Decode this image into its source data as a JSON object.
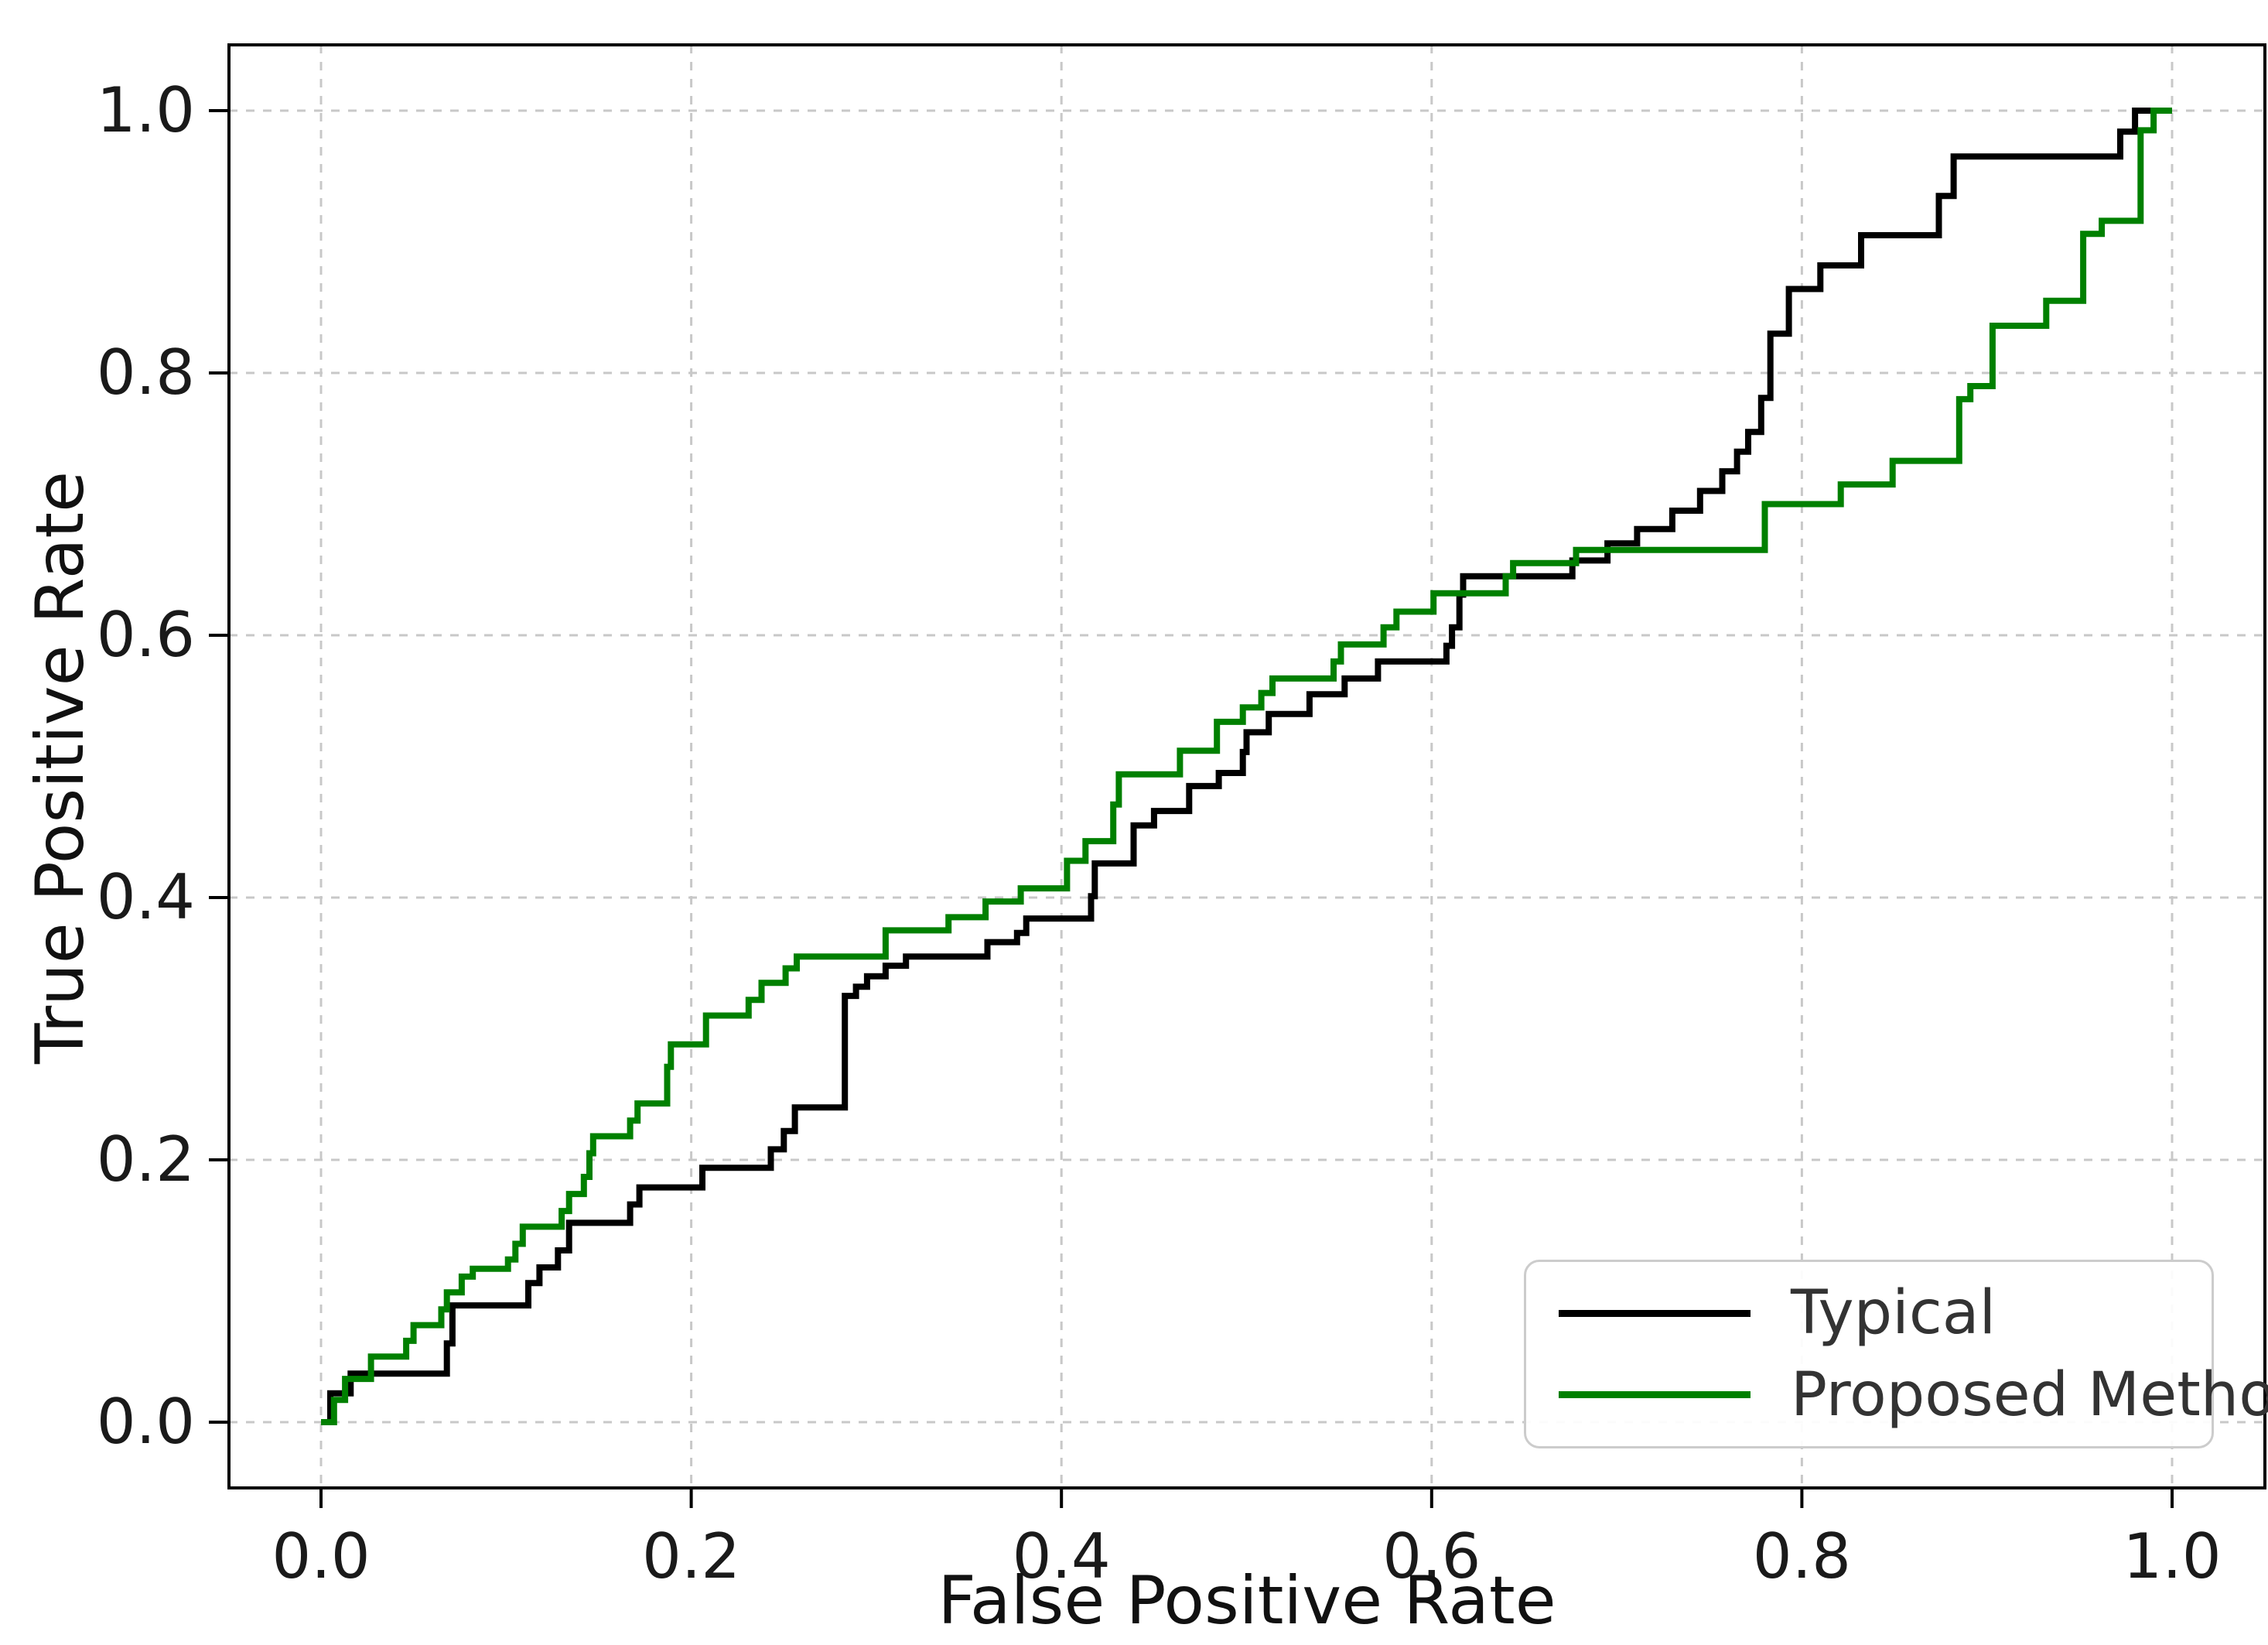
{
  "labels": {
    "xlabel": "False Positive Rate",
    "ylabel": "True Positive Rate"
  },
  "legend": {
    "position": "lower right",
    "items": [
      {
        "label": "Typical",
        "color": "#000000"
      },
      {
        "label": "Proposed Method",
        "color": "#008000"
      }
    ]
  },
  "chart_data": {
    "type": "line",
    "subtype": "roc-step-curves",
    "title": "",
    "xlabel": "False Positive Rate",
    "ylabel": "True Positive Rate",
    "xlim": [
      -0.05,
      1.05
    ],
    "ylim": [
      -0.05,
      1.05
    ],
    "grid": {
      "on": true,
      "style": "dashed",
      "color": "#c8c8c8"
    },
    "x_tick_labels": [
      "0.0",
      "0.2",
      "0.4",
      "0.6",
      "0.8",
      "1.0"
    ],
    "y_tick_labels": [
      "0.0",
      "0.2",
      "0.4",
      "0.6",
      "0.8",
      "1.0"
    ],
    "axis_color": "#000000",
    "tick_label_color": "#1a1a1a",
    "line_width": 8,
    "series": [
      {
        "name": "Typical",
        "color": "#000000",
        "step_points_fpr_tpr": [
          [
            0.0,
            0.0
          ],
          [
            0.005,
            0.022
          ],
          [
            0.016,
            0.037
          ],
          [
            0.068,
            0.06
          ],
          [
            0.071,
            0.089
          ],
          [
            0.112,
            0.106
          ],
          [
            0.118,
            0.118
          ],
          [
            0.128,
            0.131
          ],
          [
            0.134,
            0.152
          ],
          [
            0.167,
            0.166
          ],
          [
            0.172,
            0.179
          ],
          [
            0.206,
            0.194
          ],
          [
            0.243,
            0.208
          ],
          [
            0.25,
            0.222
          ],
          [
            0.256,
            0.24
          ],
          [
            0.283,
            0.325
          ],
          [
            0.289,
            0.332
          ],
          [
            0.295,
            0.34
          ],
          [
            0.305,
            0.348
          ],
          [
            0.316,
            0.355
          ],
          [
            0.36,
            0.366
          ],
          [
            0.376,
            0.373
          ],
          [
            0.381,
            0.384
          ],
          [
            0.416,
            0.401
          ],
          [
            0.418,
            0.426
          ],
          [
            0.439,
            0.455
          ],
          [
            0.45,
            0.466
          ],
          [
            0.469,
            0.485
          ],
          [
            0.485,
            0.495
          ],
          [
            0.498,
            0.511
          ],
          [
            0.5,
            0.526
          ],
          [
            0.512,
            0.54
          ],
          [
            0.534,
            0.555
          ],
          [
            0.553,
            0.567
          ],
          [
            0.571,
            0.58
          ],
          [
            0.608,
            0.592
          ],
          [
            0.611,
            0.606
          ],
          [
            0.615,
            0.631
          ],
          [
            0.617,
            0.645
          ],
          [
            0.676,
            0.657
          ],
          [
            0.695,
            0.67
          ],
          [
            0.711,
            0.681
          ],
          [
            0.73,
            0.695
          ],
          [
            0.745,
            0.71
          ],
          [
            0.757,
            0.725
          ],
          [
            0.765,
            0.74
          ],
          [
            0.771,
            0.755
          ],
          [
            0.778,
            0.781
          ],
          [
            0.783,
            0.83
          ],
          [
            0.793,
            0.864
          ],
          [
            0.81,
            0.882
          ],
          [
            0.832,
            0.905
          ],
          [
            0.874,
            0.935
          ],
          [
            0.882,
            0.965
          ],
          [
            0.972,
            0.984
          ],
          [
            0.98,
            1.0
          ],
          [
            1.0,
            1.0
          ]
        ]
      },
      {
        "name": "Proposed Method",
        "color": "#008000",
        "step_points_fpr_tpr": [
          [
            0.0,
            0.0
          ],
          [
            0.007,
            0.017
          ],
          [
            0.013,
            0.033
          ],
          [
            0.027,
            0.05
          ],
          [
            0.046,
            0.062
          ],
          [
            0.05,
            0.074
          ],
          [
            0.065,
            0.086
          ],
          [
            0.068,
            0.099
          ],
          [
            0.076,
            0.111
          ],
          [
            0.082,
            0.117
          ],
          [
            0.101,
            0.124
          ],
          [
            0.105,
            0.136
          ],
          [
            0.109,
            0.149
          ],
          [
            0.13,
            0.161
          ],
          [
            0.134,
            0.174
          ],
          [
            0.142,
            0.187
          ],
          [
            0.145,
            0.205
          ],
          [
            0.147,
            0.218
          ],
          [
            0.167,
            0.23
          ],
          [
            0.171,
            0.243
          ],
          [
            0.187,
            0.271
          ],
          [
            0.189,
            0.288
          ],
          [
            0.208,
            0.31
          ],
          [
            0.231,
            0.322
          ],
          [
            0.238,
            0.335
          ],
          [
            0.251,
            0.346
          ],
          [
            0.257,
            0.355
          ],
          [
            0.305,
            0.375
          ],
          [
            0.339,
            0.385
          ],
          [
            0.359,
            0.397
          ],
          [
            0.378,
            0.407
          ],
          [
            0.403,
            0.428
          ],
          [
            0.413,
            0.443
          ],
          [
            0.428,
            0.471
          ],
          [
            0.431,
            0.494
          ],
          [
            0.464,
            0.512
          ],
          [
            0.484,
            0.534
          ],
          [
            0.498,
            0.545
          ],
          [
            0.508,
            0.556
          ],
          [
            0.514,
            0.567
          ],
          [
            0.547,
            0.58
          ],
          [
            0.551,
            0.593
          ],
          [
            0.574,
            0.606
          ],
          [
            0.581,
            0.618
          ],
          [
            0.601,
            0.632
          ],
          [
            0.64,
            0.645
          ],
          [
            0.644,
            0.655
          ],
          [
            0.678,
            0.665
          ],
          [
            0.78,
            0.7
          ],
          [
            0.821,
            0.715
          ],
          [
            0.849,
            0.733
          ],
          [
            0.885,
            0.78
          ],
          [
            0.891,
            0.79
          ],
          [
            0.903,
            0.836
          ],
          [
            0.932,
            0.855
          ],
          [
            0.952,
            0.906
          ],
          [
            0.962,
            0.916
          ],
          [
            0.983,
            0.985
          ],
          [
            0.99,
            1.0
          ],
          [
            1.0,
            1.0
          ]
        ]
      }
    ]
  }
}
